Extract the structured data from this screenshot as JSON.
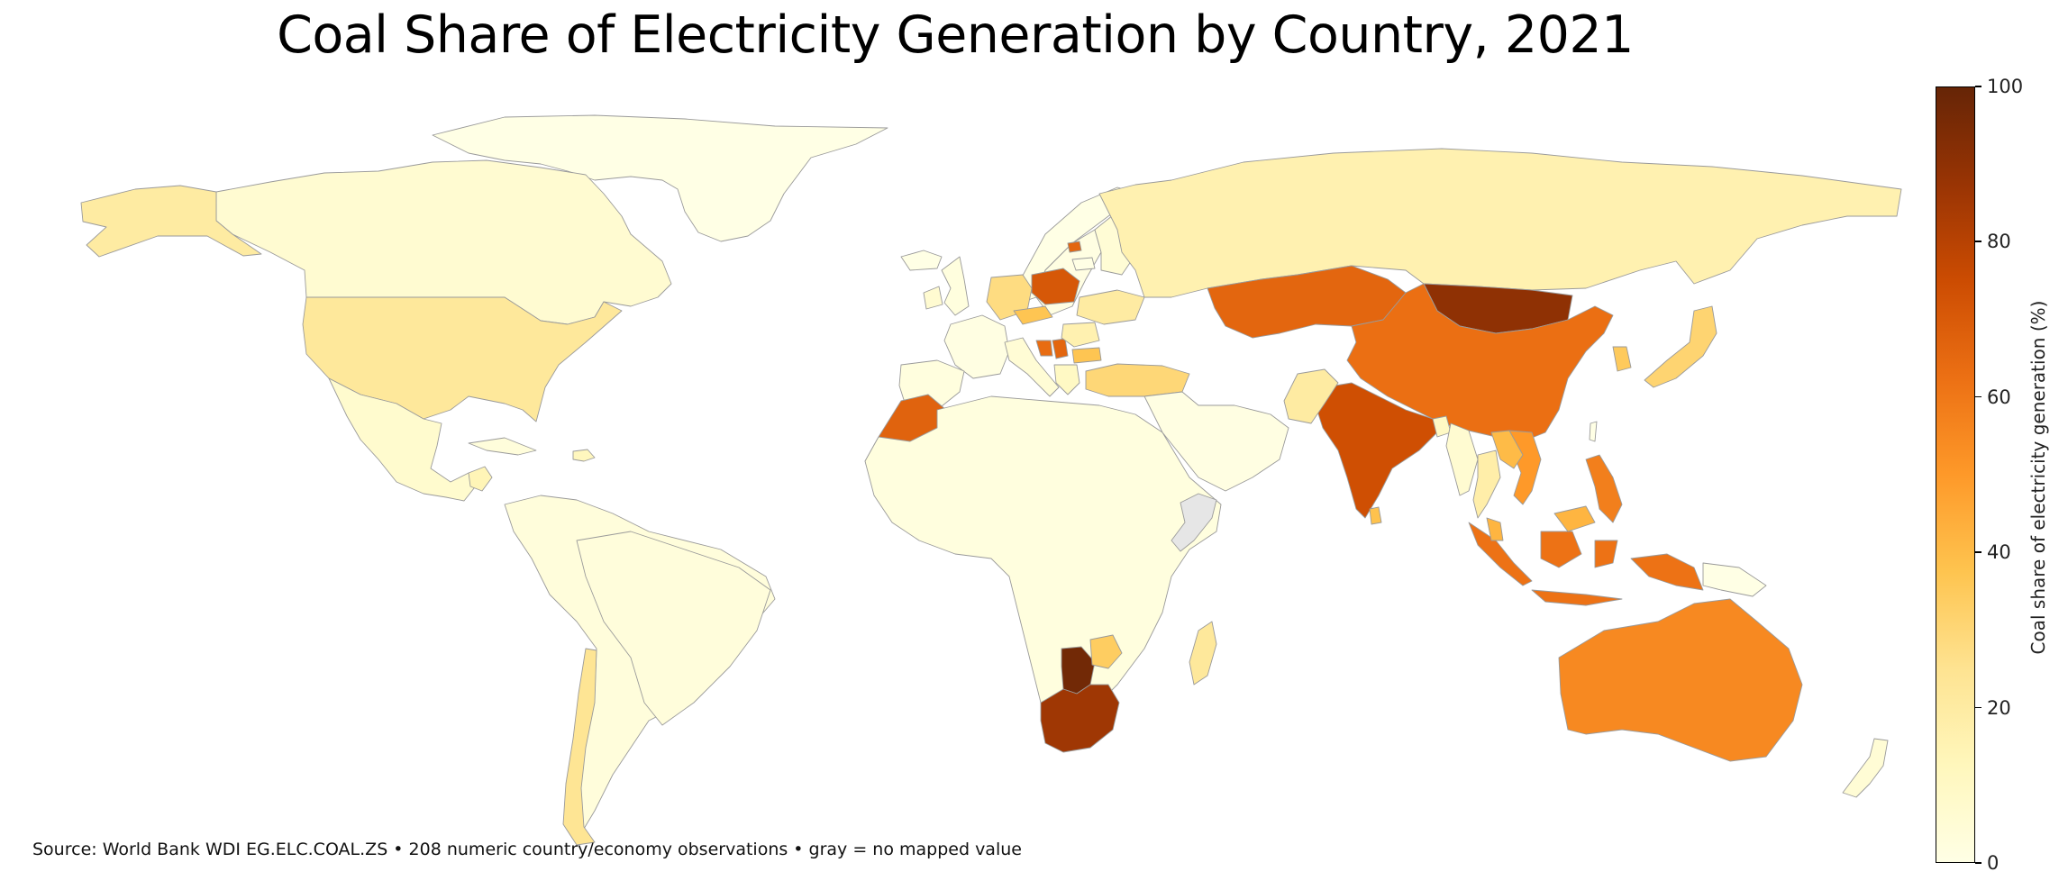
{
  "title": "Coal Share of Electricity Generation by Country, 2021",
  "source_note": "Source: World Bank WDI EG.ELC.COAL.ZS  •  208 numeric country/economy observations  •  gray = no mapped value",
  "colorbar": {
    "label": "Coal share of electricity generation (%)",
    "ticks": [
      "0",
      "20",
      "40",
      "60",
      "80",
      "100"
    ],
    "range": [
      0,
      100
    ],
    "colormap": "YlOrBr",
    "no_data_color": "#e6e6e6"
  },
  "chart_data": {
    "type": "choropleth",
    "title": "Coal Share of Electricity Generation by Country, 2021",
    "value_label": "Coal share of electricity generation (%)",
    "range": [
      0,
      100
    ],
    "regions": [
      {
        "name": "Greenland",
        "value": 0
      },
      {
        "name": "Canada",
        "value": 6
      },
      {
        "name": "Alaska (United States)",
        "value": 20
      },
      {
        "name": "United States",
        "value": 22
      },
      {
        "name": "Mexico",
        "value": 7
      },
      {
        "name": "Cuba",
        "value": 3
      },
      {
        "name": "Dominican Republic",
        "value": 12
      },
      {
        "name": "Guatemala",
        "value": 14
      },
      {
        "name": "South America (most countries)",
        "value": 3
      },
      {
        "name": "Brazil",
        "value": 3
      },
      {
        "name": "Chile",
        "value": 24
      },
      {
        "name": "Iceland",
        "value": 0
      },
      {
        "name": "Norway",
        "value": 0
      },
      {
        "name": "Sweden",
        "value": 1
      },
      {
        "name": "Finland",
        "value": 5
      },
      {
        "name": "United Kingdom",
        "value": 2
      },
      {
        "name": "Ireland",
        "value": 6
      },
      {
        "name": "France",
        "value": 1
      },
      {
        "name": "Spain",
        "value": 2
      },
      {
        "name": "Germany",
        "value": 28
      },
      {
        "name": "Poland",
        "value": 71
      },
      {
        "name": "Czech Republic",
        "value": 37
      },
      {
        "name": "Ukraine",
        "value": 20
      },
      {
        "name": "Serbia",
        "value": 66
      },
      {
        "name": "Bosnia and Herzegovina",
        "value": 64
      },
      {
        "name": "Bulgaria",
        "value": 37
      },
      {
        "name": "Romania",
        "value": 16
      },
      {
        "name": "Greece",
        "value": 10
      },
      {
        "name": "Turkey",
        "value": 30
      },
      {
        "name": "Italy",
        "value": 5
      },
      {
        "name": "Lithuania",
        "value": 0
      },
      {
        "name": "Kaliningrad (Russia)",
        "value": 66
      },
      {
        "name": "Russia",
        "value": 16
      },
      {
        "name": "Kazakhstan",
        "value": 66
      },
      {
        "name": "Mongolia",
        "value": 90
      },
      {
        "name": "China",
        "value": 63
      },
      {
        "name": "India",
        "value": 74
      },
      {
        "name": "Pakistan",
        "value": 20
      },
      {
        "name": "Bangladesh",
        "value": 10
      },
      {
        "name": "Sri Lanka",
        "value": 38
      },
      {
        "name": "Myanmar",
        "value": 6
      },
      {
        "name": "Thailand",
        "value": 18
      },
      {
        "name": "Vietnam",
        "value": 50
      },
      {
        "name": "Laos",
        "value": 40
      },
      {
        "name": "Philippines",
        "value": 58
      },
      {
        "name": "Indonesia",
        "value": 62
      },
      {
        "name": "Malaysia",
        "value": 42
      },
      {
        "name": "South Korea",
        "value": 35
      },
      {
        "name": "Japan",
        "value": 31
      },
      {
        "name": "Taiwan",
        "value": 0
      },
      {
        "name": "Papua New Guinea",
        "value": 0
      },
      {
        "name": "Australia",
        "value": 55
      },
      {
        "name": "New Zealand",
        "value": 5
      },
      {
        "name": "Morocco",
        "value": 67
      },
      {
        "name": "Niger",
        "value": 12
      },
      {
        "name": "Africa (most countries)",
        "value": 2
      },
      {
        "name": "Botswana",
        "value": 97
      },
      {
        "name": "South Africa",
        "value": 86
      },
      {
        "name": "Zimbabwe",
        "value": 34
      },
      {
        "name": "Madagascar",
        "value": 22
      },
      {
        "name": "Middle East (most countries)",
        "value": 1
      },
      {
        "name": "Somalia",
        "value": null
      }
    ]
  }
}
